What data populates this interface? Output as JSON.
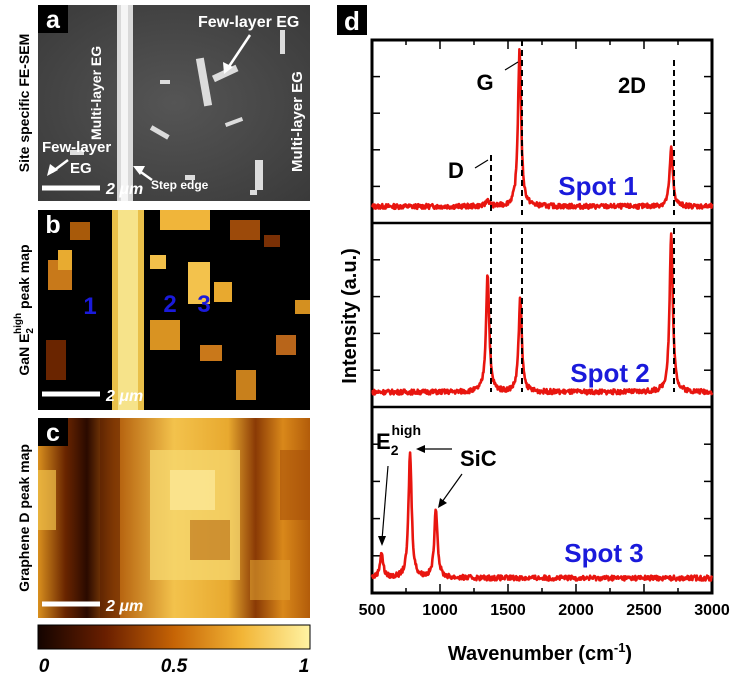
{
  "panels": {
    "a": {
      "letter": "a",
      "side_label": "Site specific FE-SEM",
      "labels": {
        "few_layer_top": "Few-layer EG",
        "multi_layer_top": "Multi-layer EG",
        "multi_layer_right": "Multi-layer EG",
        "few_layer_left": "Few-layer",
        "eg": "EG",
        "step_edge": "Step edge"
      },
      "scale": "2 μm"
    },
    "b": {
      "letter": "b",
      "side_label_prefix": "GaN E",
      "side_label_sub": "2",
      "side_label_sup": "high",
      "side_label_suffix": " peak map",
      "spots": [
        "1",
        "2",
        "3"
      ],
      "scale": "2 μm"
    },
    "c": {
      "letter": "c",
      "side_label": "Graphene D peak map",
      "scale": "2 μm"
    },
    "colorbar": {
      "ticks": [
        "0",
        "0.5",
        "1"
      ]
    },
    "d": {
      "letter": "d",
      "peak_labels": {
        "G": "G",
        "2D": "2D",
        "D": "D",
        "E2": "E",
        "E2_sub": "2",
        "E2_sup": "high",
        "SiC": "SiC"
      },
      "spot_labels": [
        "Spot 1",
        "Spot 2",
        "Spot 3"
      ]
    }
  },
  "colors": {
    "spectrum": "#e8150f",
    "spot_text": "#1a1adb",
    "frame": "#000000"
  },
  "chart_data": {
    "type": "line",
    "title": "",
    "xlabel": "Wavenumber (cm-1)",
    "ylabel": "Intensity (a.u.)",
    "xlim": [
      500,
      3000
    ],
    "xticks": [
      "500",
      "1000",
      "1500",
      "2000",
      "2500",
      "3000"
    ],
    "series": [
      {
        "name": "Spot 1",
        "x": [
          500,
          1000,
          1350,
          1585,
          1700,
          2200,
          2700,
          3000
        ],
        "values": [
          0.05,
          0.05,
          0.08,
          1.0,
          0.05,
          0.05,
          0.4,
          0.04
        ]
      },
      {
        "name": "Spot 2",
        "x": [
          500,
          1000,
          1350,
          1450,
          1590,
          1700,
          2200,
          2700,
          3000
        ],
        "values": [
          0.03,
          0.04,
          0.75,
          0.04,
          0.6,
          0.04,
          0.04,
          1.0,
          0.03
        ]
      },
      {
        "name": "Spot 3",
        "x": [
          500,
          570,
          650,
          780,
          850,
          970,
          1050,
          1500,
          2500,
          3000
        ],
        "values": [
          0.03,
          0.18,
          0.03,
          0.78,
          0.03,
          0.45,
          0.03,
          0.03,
          0.03,
          0.03
        ]
      }
    ]
  }
}
